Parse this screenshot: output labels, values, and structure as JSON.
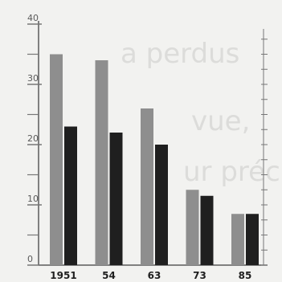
{
  "colors": {
    "background": "#f2f2f0",
    "axis": "#5b5b5b",
    "tick": "#777777",
    "series_a": "#8e8e8e",
    "series_b": "#1f1f1f",
    "ghost_text": "#dcdcda"
  },
  "chart_data": {
    "type": "bar",
    "categories": [
      "1951",
      "54",
      "63",
      "73",
      "85"
    ],
    "series": [
      {
        "values": [
          35,
          34,
          26,
          12.5,
          8.5
        ]
      },
      {
        "values": [
          23,
          22,
          20,
          11.5,
          8.5
        ]
      }
    ],
    "title": "",
    "xlabel": "",
    "ylabel": "",
    "ylim": [
      0,
      40
    ],
    "yticks": [
      0,
      10,
      20,
      30,
      40
    ],
    "yticklabels": [
      "0",
      "10",
      "20",
      "30",
      "40"
    ],
    "minor_tick_step": 5,
    "grid": false,
    "legend": "none"
  },
  "background_text": {
    "lines": [
      "a perdus",
      "vue,",
      "ur précieux"
    ]
  }
}
